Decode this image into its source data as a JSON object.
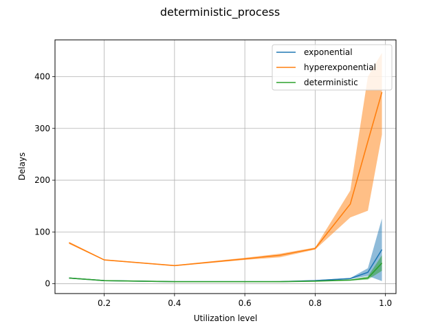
{
  "chart_data": {
    "type": "line",
    "title": "deterministic_process",
    "xlabel": "Utilization level",
    "ylabel": "Delays",
    "xlim": [
      0.06,
      1.03
    ],
    "ylim": [
      -19,
      471
    ],
    "xticks": [
      0.2,
      0.4,
      0.6,
      0.8,
      1.0
    ],
    "xtick_labels": [
      "0.2",
      "0.4",
      "0.6",
      "0.8",
      "1.0"
    ],
    "yticks": [
      0,
      100,
      200,
      300,
      400
    ],
    "ytick_labels": [
      "0",
      "100",
      "200",
      "300",
      "400"
    ],
    "grid": true,
    "legend_position": "upper right",
    "x": [
      0.1,
      0.2,
      0.4,
      0.6,
      0.7,
      0.8,
      0.9,
      0.95,
      0.99
    ],
    "series": [
      {
        "name": "exponential",
        "color": "#1f77b4",
        "values": [
          11,
          6,
          4,
          4,
          4,
          6,
          10,
          22,
          66
        ],
        "lower": [
          10,
          6,
          4,
          3.5,
          3.5,
          5,
          9,
          15,
          5
        ],
        "upper": [
          12,
          7,
          4.5,
          4.5,
          5,
          7,
          11,
          30,
          126
        ]
      },
      {
        "name": "hyperexponential",
        "color": "#ff7f0e",
        "values": [
          79,
          46,
          35,
          48,
          55,
          68,
          154,
          275,
          370
        ],
        "lower": [
          77,
          45,
          34,
          46,
          51,
          66,
          128,
          141,
          288
        ],
        "upper": [
          81,
          47,
          36,
          50,
          58,
          70,
          180,
          400,
          446
        ]
      },
      {
        "name": "deterministic",
        "color": "#2ca02c",
        "values": [
          11,
          6,
          4,
          4,
          4,
          5,
          7,
          11,
          40
        ],
        "lower": [
          10,
          5.5,
          3.8,
          3.8,
          3.8,
          4.5,
          6,
          8,
          25
        ],
        "upper": [
          12,
          6.5,
          4.2,
          4.2,
          4.5,
          5.5,
          8,
          14,
          55
        ]
      }
    ]
  }
}
